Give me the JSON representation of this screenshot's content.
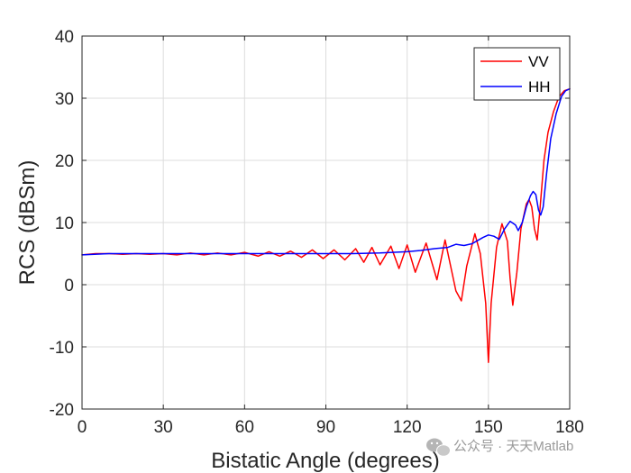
{
  "chart_data": {
    "type": "line",
    "title": "",
    "xlabel": "Bistatic Angle (degrees)",
    "ylabel": "RCS (dBSm)",
    "xlim": [
      0,
      180
    ],
    "ylim": [
      -20,
      40
    ],
    "xticks": [
      0,
      30,
      60,
      90,
      120,
      150,
      180
    ],
    "yticks": [
      -20,
      -10,
      0,
      10,
      20,
      30,
      40
    ],
    "grid": true,
    "legend": "top-right",
    "series": [
      {
        "name": "VV",
        "color": "#ff0000",
        "points": [
          [
            0,
            4.8
          ],
          [
            5,
            5.0
          ],
          [
            10,
            5.0
          ],
          [
            15,
            4.9
          ],
          [
            20,
            5.0
          ],
          [
            25,
            4.9
          ],
          [
            30,
            5.0
          ],
          [
            35,
            4.8
          ],
          [
            40,
            5.1
          ],
          [
            45,
            4.8
          ],
          [
            50,
            5.1
          ],
          [
            55,
            4.8
          ],
          [
            60,
            5.2
          ],
          [
            65,
            4.6
          ],
          [
            69,
            5.3
          ],
          [
            73,
            4.6
          ],
          [
            77,
            5.4
          ],
          [
            81,
            4.4
          ],
          [
            85,
            5.6
          ],
          [
            89,
            4.2
          ],
          [
            93,
            5.6
          ],
          [
            97,
            4.0
          ],
          [
            101,
            5.8
          ],
          [
            104,
            3.6
          ],
          [
            107,
            6.0
          ],
          [
            110,
            3.2
          ],
          [
            114,
            6.2
          ],
          [
            117,
            2.6
          ],
          [
            120,
            6.4
          ],
          [
            123,
            2.0
          ],
          [
            127,
            6.7
          ],
          [
            131,
            0.8
          ],
          [
            134,
            7.2
          ],
          [
            138,
            -1.0
          ],
          [
            140,
            -2.6
          ],
          [
            142,
            3.0
          ],
          [
            145,
            8.2
          ],
          [
            147,
            5.0
          ],
          [
            149,
            -3.0
          ],
          [
            150,
            -12.5
          ],
          [
            151,
            -3.0
          ],
          [
            153,
            6.0
          ],
          [
            155,
            9.8
          ],
          [
            157,
            7.0
          ],
          [
            158,
            1.0
          ],
          [
            159,
            -3.3
          ],
          [
            160.5,
            2.0
          ],
          [
            162,
            9.0
          ],
          [
            164,
            13.0
          ],
          [
            165,
            13.7
          ],
          [
            166,
            12.5
          ],
          [
            167,
            9.0
          ],
          [
            168,
            7.2
          ],
          [
            169,
            12.0
          ],
          [
            170.5,
            20.0
          ],
          [
            172,
            24.5
          ],
          [
            174,
            27.8
          ],
          [
            176,
            30.2
          ],
          [
            178,
            31.2
          ],
          [
            180,
            31.5
          ]
        ]
      },
      {
        "name": "HH",
        "color": "#0000ff",
        "points": [
          [
            0,
            4.8
          ],
          [
            10,
            5.0
          ],
          [
            20,
            5.0
          ],
          [
            30,
            5.0
          ],
          [
            40,
            5.0
          ],
          [
            50,
            5.0
          ],
          [
            60,
            5.0
          ],
          [
            70,
            5.0
          ],
          [
            80,
            5.0
          ],
          [
            90,
            5.0
          ],
          [
            100,
            5.0
          ],
          [
            110,
            5.1
          ],
          [
            120,
            5.3
          ],
          [
            125,
            5.5
          ],
          [
            130,
            5.8
          ],
          [
            135,
            6.0
          ],
          [
            138,
            6.5
          ],
          [
            141,
            6.3
          ],
          [
            144,
            6.6
          ],
          [
            148,
            7.6
          ],
          [
            150,
            8.0
          ],
          [
            152,
            7.8
          ],
          [
            154,
            7.3
          ],
          [
            156,
            9.0
          ],
          [
            158,
            10.2
          ],
          [
            160,
            9.6
          ],
          [
            161,
            8.7
          ],
          [
            162.5,
            10.0
          ],
          [
            164,
            12.5
          ],
          [
            165.5,
            14.3
          ],
          [
            166.5,
            15.0
          ],
          [
            167.5,
            14.5
          ],
          [
            168.5,
            12.0
          ],
          [
            169.3,
            11.2
          ],
          [
            170.2,
            12.5
          ],
          [
            171.5,
            18.0
          ],
          [
            173,
            23.5
          ],
          [
            175,
            27.5
          ],
          [
            177,
            30.3
          ],
          [
            178.5,
            31.2
          ],
          [
            180,
            31.5
          ]
        ]
      }
    ]
  },
  "watermark": {
    "icon": "wechat-icon",
    "text": "公众号 · 天天Matlab"
  }
}
